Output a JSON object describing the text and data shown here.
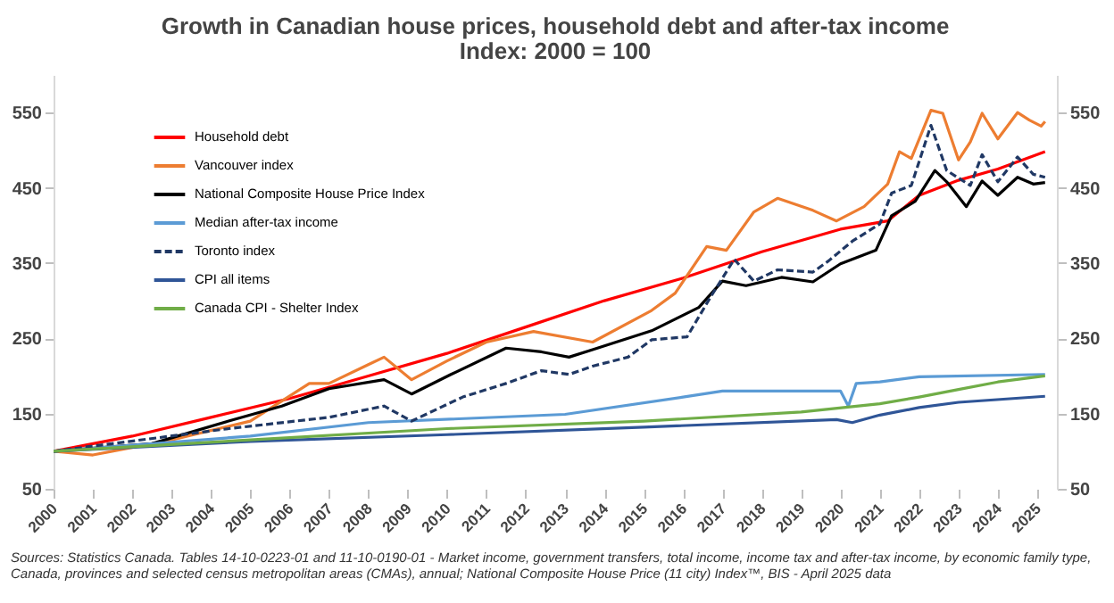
{
  "chart_data": {
    "type": "line",
    "title": "Growth in Canadian house prices, household debt and after-tax income",
    "subtitle": "Index: 2000 = 100",
    "annotations": [
      "Sources: Statistics Canada. Tables 14-10-0223-01 and 11-10-0190-01 -  Market income, government transfers, total income, income tax and after-tax income, by economic family type, Canada, provinces and selected census metropolitan areas (CMAs), annual; National Composite House Price (11 city) Index™, BIS - April 2025 data"
    ],
    "legend": "top left",
    "xlim": [
      2000,
      2025.5
    ],
    "xticks": [
      2000,
      2001,
      2002,
      2003,
      2004,
      2005,
      2006,
      2007,
      2008,
      2009,
      2010,
      2011,
      2012,
      2013,
      2014,
      2015,
      2016,
      2017,
      2018,
      2019,
      2020,
      2021,
      2022,
      2023,
      2024,
      2025
    ],
    "ylim": [
      50,
      600
    ],
    "yticks": [
      50,
      150,
      250,
      350,
      450,
      550
    ],
    "y2lim": [
      50,
      600
    ],
    "y2ticks": [
      50,
      150,
      250,
      350,
      450,
      550
    ],
    "series": [
      {
        "name": "Household debt",
        "color": "#ff0000",
        "x": [
          2000,
          2002,
          2004,
          2006,
          2008,
          2010,
          2012,
          2014,
          2016,
          2018,
          2020,
          2021.2,
          2022,
          2023,
          2024,
          2025.2
        ],
        "values": [
          100,
          120,
          145,
          170,
          200,
          230,
          265,
          300,
          330,
          365,
          395,
          406,
          440,
          460,
          475,
          498
        ]
      },
      {
        "name": "Vancouver index",
        "color": "#ed7d31",
        "x": [
          2000,
          2001,
          2003,
          2005,
          2006.5,
          2007,
          2008,
          2008.4,
          2009.1,
          2010,
          2011,
          2012.2,
          2013.7,
          2015.2,
          2015.8,
          2016.6,
          2017.1,
          2017.8,
          2018.4,
          2019.3,
          2019.9,
          2020.6,
          2021.2,
          2021.5,
          2021.8,
          2022.3,
          2022.6,
          2023,
          2023.3,
          2023.6,
          2024,
          2024.5,
          2024.8,
          2025.1,
          2025.2
        ],
        "values": [
          100,
          95,
          115,
          140,
          190,
          190,
          215,
          225,
          195,
          220,
          245,
          259,
          245,
          287,
          310,
          372,
          367,
          418,
          436,
          420,
          406,
          425,
          455,
          498,
          489,
          553,
          549,
          487,
          511,
          549,
          515,
          550,
          540,
          532,
          538
        ]
      },
      {
        "name": "National Composite House Price Index",
        "color": "#000000",
        "x": [
          2000,
          2002.5,
          2004.45,
          2005.8,
          2007,
          2008.4,
          2009.1,
          2010.1,
          2011.5,
          2012.4,
          2013.1,
          2013.7,
          2015.2,
          2016.4,
          2017,
          2017.6,
          2018.5,
          2019.3,
          2020,
          2020.9,
          2021.3,
          2021.9,
          2022.4,
          2022.7,
          2023.2,
          2023.6,
          2024,
          2024.5,
          2024.9,
          2025.2
        ],
        "values": [
          100,
          110,
          140,
          160,
          183,
          195,
          176,
          202,
          237,
          232,
          225,
          235,
          260,
          291,
          326,
          320,
          331,
          325,
          349,
          367,
          413,
          432,
          473,
          458,
          425,
          459,
          440,
          464,
          455,
          457
        ]
      },
      {
        "name": "Median after-tax income",
        "color": "#5b9bd5",
        "x": [
          2000,
          2005,
          2008,
          2013,
          2016,
          2017,
          2019.7,
          2020,
          2020.2,
          2020.4,
          2021,
          2022,
          2025.2
        ],
        "values": [
          100,
          120,
          138,
          149,
          172,
          180,
          180,
          180,
          160,
          190,
          192,
          199,
          202
        ]
      },
      {
        "name": "Toronto index",
        "color": "#203864",
        "line_style": "dashed",
        "x": [
          2000,
          2004.45,
          2007,
          2008.4,
          2009.1,
          2010.4,
          2011.5,
          2012.4,
          2013.1,
          2013.7,
          2014.6,
          2015.2,
          2016.1,
          2016.7,
          2017.3,
          2017.8,
          2018.4,
          2019.3,
          2019.7,
          2020.3,
          2021,
          2021.3,
          2021.8,
          2022.3,
          2022.7,
          2023.3,
          2023.6,
          2024,
          2024.5,
          2024.9,
          2025.2
        ],
        "values": [
          100,
          130,
          145,
          160,
          140,
          172,
          190,
          207,
          202,
          213,
          225,
          248,
          252,
          305,
          355,
          326,
          341,
          338,
          353,
          379,
          402,
          443,
          453,
          533,
          473,
          453,
          494,
          458,
          491,
          468,
          464
        ]
      },
      {
        "name": "CPI all items",
        "color": "#2f5597",
        "x": [
          2000,
          2005,
          2010,
          2015,
          2019.9,
          2020.3,
          2021,
          2022,
          2023,
          2025.2
        ],
        "values": [
          100,
          113,
          122,
          132,
          142,
          138,
          148,
          158,
          165,
          173
        ]
      },
      {
        "name": "Canada CPI - Shelter Index",
        "color": "#70ad47",
        "x": [
          2000,
          2005,
          2010,
          2015,
          2019,
          2021,
          2022,
          2023,
          2024,
          2025.2
        ],
        "values": [
          100,
          115,
          130,
          140,
          152,
          163,
          172,
          182,
          192,
          200
        ]
      }
    ]
  }
}
